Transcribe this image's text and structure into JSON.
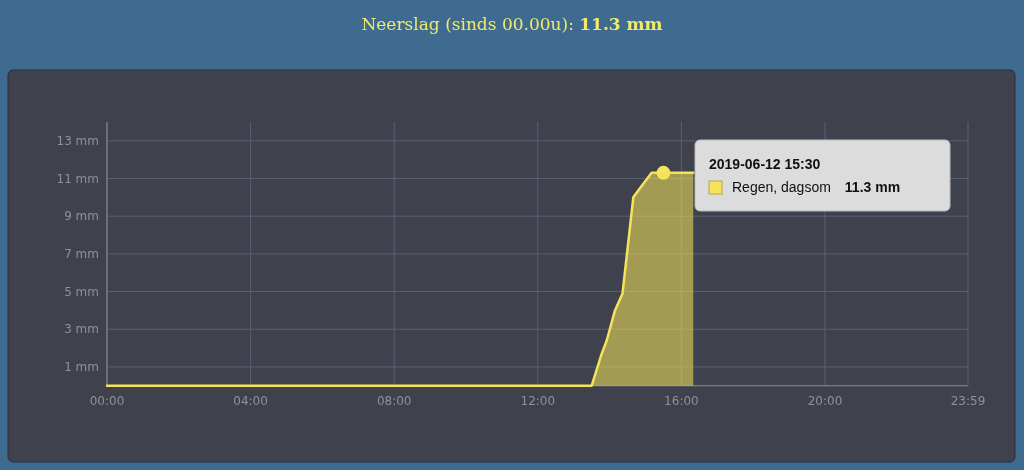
{
  "chart_data": {
    "type": "area",
    "title": "Neerslag (sinds 00.00u): 11.3 mm",
    "series": [
      {
        "name": "Regen, dagsom",
        "color": "#f5e35a",
        "x": [
          0,
          13.5,
          13.78,
          13.92,
          14.15,
          14.36,
          14.66,
          14.85,
          15.17,
          15.5,
          16.33
        ],
        "values": [
          0,
          0,
          1.7,
          2.4,
          4.0,
          4.9,
          10.0,
          10.5,
          11.3,
          11.3,
          11.3
        ]
      }
    ],
    "xlim": [
      0,
      23.983
    ],
    "xticks": [
      {
        "value": 0,
        "label": "00:00"
      },
      {
        "value": 4,
        "label": "04:00"
      },
      {
        "value": 8,
        "label": "08:00"
      },
      {
        "value": 12,
        "label": "12:00"
      },
      {
        "value": 16,
        "label": "16:00"
      },
      {
        "value": 20,
        "label": "20:00"
      },
      {
        "value": 23.983,
        "label": "23:59"
      }
    ],
    "ylim": [
      0,
      14
    ],
    "yticks": [
      {
        "value": 1,
        "label": "1 mm"
      },
      {
        "value": 3,
        "label": "3 mm"
      },
      {
        "value": 5,
        "label": "5 mm"
      },
      {
        "value": 7,
        "label": "7 mm"
      },
      {
        "value": 9,
        "label": "9 mm"
      },
      {
        "value": 11,
        "label": "11 mm"
      },
      {
        "value": 13,
        "label": "13 mm"
      }
    ],
    "grid": true,
    "legend": "top right",
    "annotations": [
      "2019-06-12 15:30",
      "11.3 mm"
    ]
  }
}
